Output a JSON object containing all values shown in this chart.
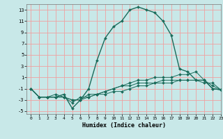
{
  "xlabel": "Humidex (Indice chaleur)",
  "bg_color": "#c8e8e8",
  "grid_color": "#f0a0a0",
  "line_color": "#1a6b5a",
  "xlim": [
    -0.5,
    23
  ],
  "ylim": [
    -5.5,
    14
  ],
  "xticks": [
    0,
    1,
    2,
    3,
    4,
    5,
    6,
    7,
    8,
    9,
    10,
    11,
    12,
    13,
    14,
    15,
    16,
    17,
    18,
    19,
    20,
    21,
    22,
    23
  ],
  "yticks": [
    -5,
    -3,
    -1,
    1,
    3,
    5,
    7,
    9,
    11,
    13
  ],
  "series": [
    {
      "x": [
        0,
        1,
        2,
        3,
        4,
        5,
        6,
        7,
        8,
        9,
        10,
        11,
        12,
        13,
        14,
        15,
        16,
        17,
        18,
        19,
        20,
        21,
        22,
        23
      ],
      "y": [
        -1,
        -2.5,
        -2.5,
        -2.5,
        -2,
        -4.5,
        -3,
        -1,
        4,
        8,
        10,
        11,
        13,
        13.5,
        13,
        12.5,
        11,
        8.5,
        2.5,
        2,
        0.5,
        0.5,
        -1,
        -1.2
      ]
    },
    {
      "x": [
        0,
        1,
        2,
        3,
        4,
        5,
        6,
        7,
        8,
        9,
        10,
        11,
        12,
        13,
        14,
        15,
        16,
        17,
        18,
        19,
        20,
        21,
        22,
        23
      ],
      "y": [
        -1,
        -2.5,
        -2.5,
        -2.5,
        -2.5,
        -3,
        -3,
        -2,
        -2,
        -1.5,
        -1,
        -0.5,
        0,
        0.5,
        0.5,
        1,
        1,
        1,
        1.5,
        1.5,
        2,
        0.5,
        -1,
        -1.2
      ]
    },
    {
      "x": [
        0,
        1,
        2,
        3,
        4,
        5,
        6,
        7,
        8,
        9,
        10,
        11,
        12,
        13,
        14,
        15,
        16,
        17,
        18,
        19,
        20,
        21,
        22,
        23
      ],
      "y": [
        -1,
        -2.5,
        -2.5,
        -2,
        -2.5,
        -3,
        -3,
        -2.5,
        -2,
        -2,
        -1.5,
        -1.5,
        -1,
        -0.5,
        -0.5,
        0,
        0,
        0,
        0.5,
        0.5,
        0.5,
        0.5,
        -0.5,
        -1.2
      ]
    },
    {
      "x": [
        0,
        1,
        2,
        3,
        4,
        5,
        6,
        7,
        8,
        9,
        10,
        11,
        12,
        13,
        14,
        15,
        16,
        17,
        18,
        19,
        20,
        21,
        22,
        23
      ],
      "y": [
        -1,
        -2.5,
        -2.5,
        -2.5,
        -2.5,
        -3.5,
        -2.5,
        -2.5,
        -2,
        -1.5,
        -1,
        -0.5,
        -0.5,
        0,
        0,
        0,
        0.5,
        0.5,
        0.5,
        0.5,
        0.5,
        0,
        0,
        -1.2
      ]
    }
  ]
}
